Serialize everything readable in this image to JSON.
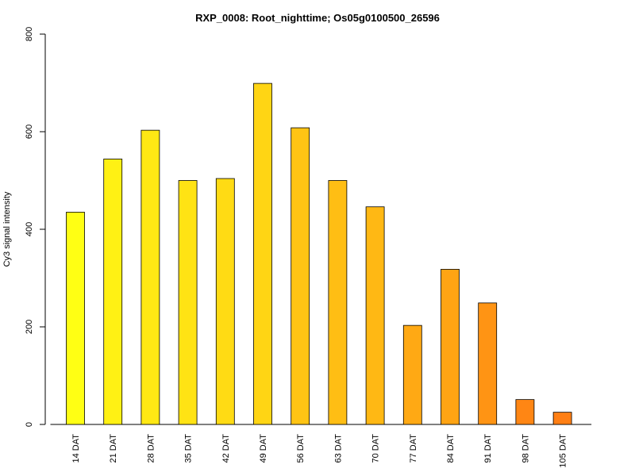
{
  "chart_data": {
    "type": "bar",
    "title": "RXP_0008: Root_nighttime; Os05g0100500_26596",
    "xlabel": "",
    "ylabel": "Cy3 signal intensity",
    "ylim": [
      0,
      800
    ],
    "yticks": [
      "0",
      "200",
      "400",
      "600",
      "800"
    ],
    "categories": [
      "14 DAT",
      "21 DAT",
      "28 DAT",
      "35 DAT",
      "42 DAT",
      "49 DAT",
      "56 DAT",
      "63 DAT",
      "70 DAT",
      "77 DAT",
      "84 DAT",
      "91 DAT",
      "98 DAT",
      "105 DAT"
    ],
    "values": [
      435,
      544,
      603,
      500,
      504,
      699,
      608,
      500,
      446,
      203,
      318,
      249,
      51,
      25
    ],
    "colors": [
      "#FFFF14",
      "#FFF114",
      "#FFE814",
      "#FFE314",
      "#FFDB14",
      "#FFD514",
      "#FFC414",
      "#FFBE14",
      "#FFB814",
      "#FFA914",
      "#FFA414",
      "#FF9414",
      "#FF8614",
      "#FF7F14"
    ],
    "grid": false,
    "legend": "none"
  }
}
